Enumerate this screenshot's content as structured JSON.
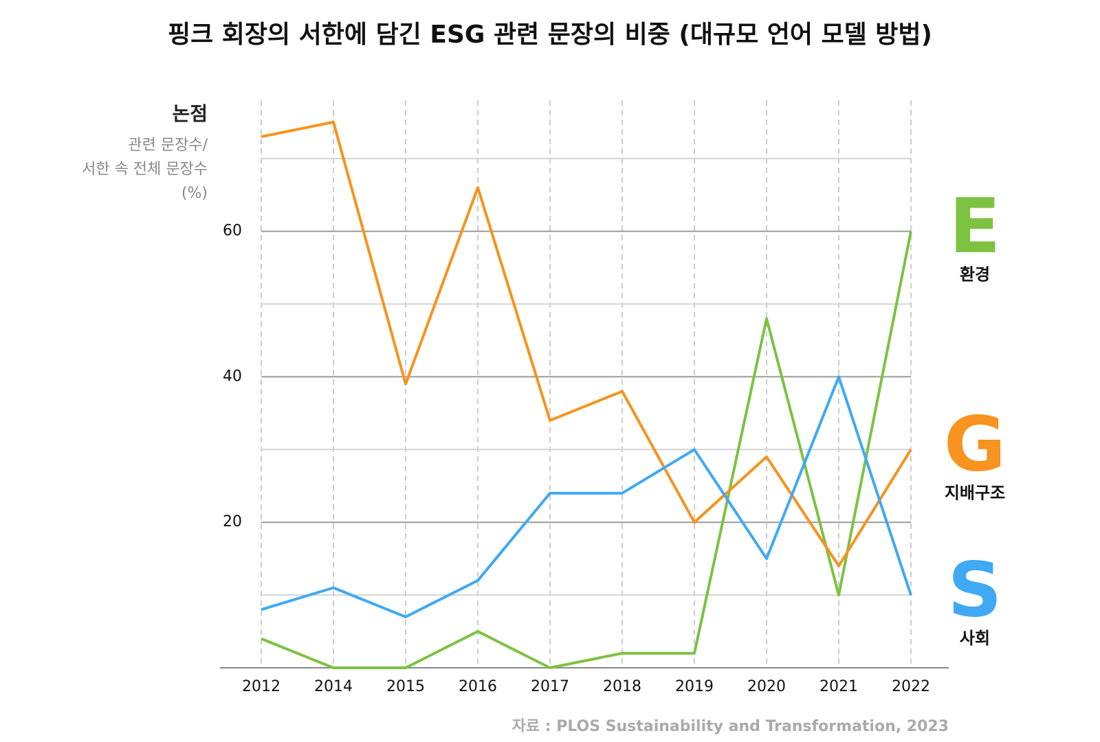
{
  "chart_data": {
    "type": "line",
    "title": "핑크 회장의 서한에 담긴 ESG 관련 문장의 비중 (대규모 언어 모델 방법)",
    "y_axis_title": "논점",
    "y_axis_subtitle": [
      "관련 문장수/",
      "서한 속 전체 문장수",
      "(%)"
    ],
    "source": "자료 : PLOS Sustainability and Transformation, 2023",
    "categories": [
      "2012",
      "2014",
      "2015",
      "2016",
      "2017",
      "2018",
      "2019",
      "2020",
      "2021",
      "2022"
    ],
    "series": [
      {
        "name": "환경",
        "letter": "E",
        "color": "#7dc241",
        "values": [
          4,
          0,
          0,
          5,
          0,
          2,
          2,
          48,
          10,
          60
        ]
      },
      {
        "name": "지배구조",
        "letter": "G",
        "color": "#f7931e",
        "values": [
          73,
          75,
          39,
          66,
          34,
          38,
          20,
          29,
          14,
          30
        ]
      },
      {
        "name": "사회",
        "letter": "S",
        "color": "#3fa9f5",
        "values": [
          8,
          11,
          7,
          12,
          24,
          24,
          30,
          15,
          40,
          10
        ]
      }
    ],
    "ylim": [
      0,
      78
    ],
    "yticks": [
      20,
      40,
      60
    ],
    "minor_grid": [
      10,
      30,
      50,
      70
    ],
    "grid": true
  }
}
